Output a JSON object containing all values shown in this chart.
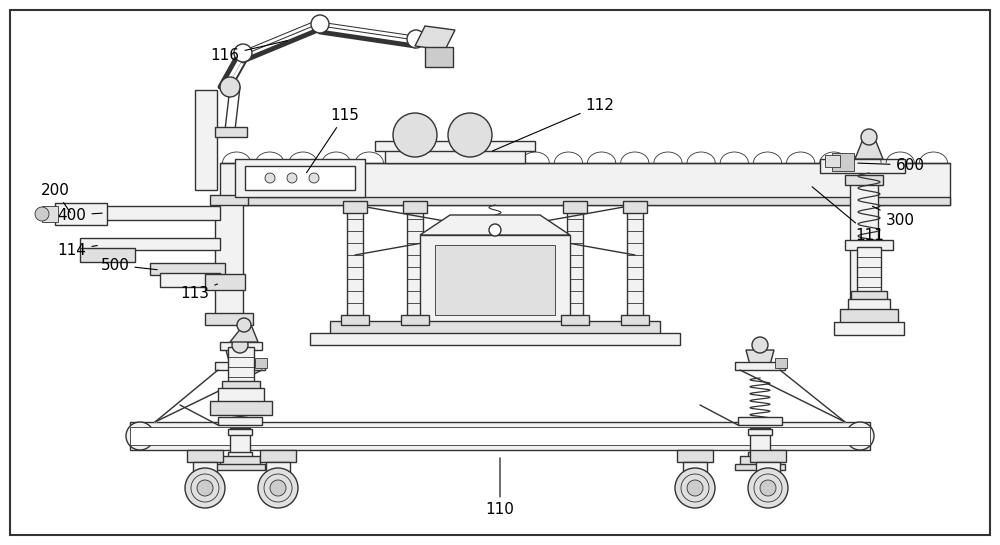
{
  "bg_color": "#ffffff",
  "line_color": "#333333",
  "line_width": 1.0,
  "thin_line": 0.6,
  "thick_line": 1.5,
  "label_fontsize": 11,
  "fig_width": 10.0,
  "fig_height": 5.45,
  "dpi": 100,
  "border_color": "#555555",
  "fill_light": "#f2f2f2",
  "fill_mid": "#e0e0e0",
  "fill_dark": "#cccccc",
  "fill_white": "#ffffff"
}
